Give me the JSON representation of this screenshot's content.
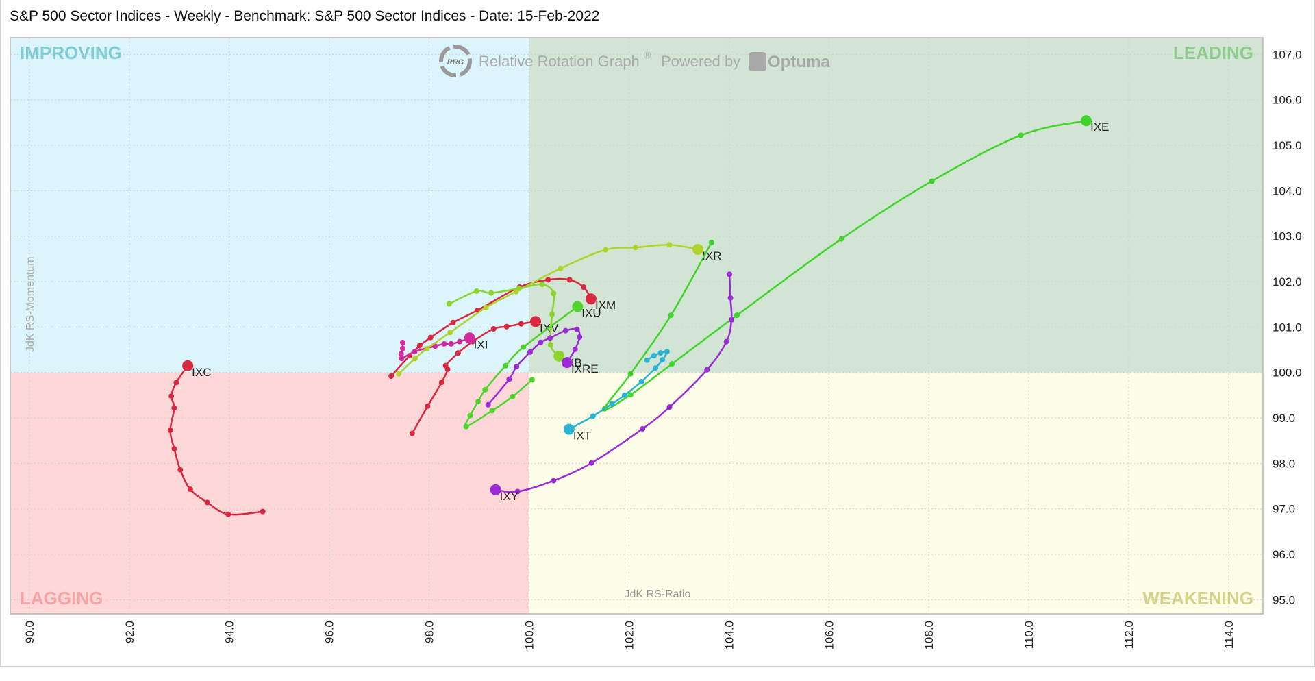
{
  "title": "S&P 500 Sector Indices - Weekly - Benchmark: S&P 500 Sector Indices - Date: 15-Feb-2022",
  "watermark": {
    "logo_text": "RRG",
    "text": "Relative Rotation Graph",
    "reg": "®",
    "powered": "Powered by",
    "brand": "Optuma"
  },
  "quadrants": {
    "improving": {
      "label": "IMPROVING",
      "bg": "#dcf4fb",
      "fg": "#7fcdd3"
    },
    "leading": {
      "label": "LEADING",
      "bg": "#d2e4d3",
      "fg": "#8ecb8e"
    },
    "lagging": {
      "label": "LAGGING",
      "bg": "#fed8d9",
      "fg": "#f5a3a5"
    },
    "weakening": {
      "label": "WEAKENING",
      "bg": "#fefee8",
      "fg": "#d3d38a"
    }
  },
  "chart_data": {
    "type": "scatter",
    "title": "S&P 500 Sector Indices - Weekly - Benchmark: S&P 500 Sector Indices - Date: 15-Feb-2022",
    "xlabel": "JdK RS-Ratio",
    "ylabel": "JdK RS-Momentum",
    "xlim": [
      89.6,
      114.7
    ],
    "ylim": [
      94.7,
      107.4
    ],
    "xticks": [
      "90.0",
      "92.0",
      "94.0",
      "96.0",
      "98.0",
      "100.0",
      "102.0",
      "104.0",
      "106.0",
      "108.0",
      "110.0",
      "112.0",
      "114.0"
    ],
    "yticks": [
      "95.0",
      "96.0",
      "97.0",
      "98.0",
      "99.0",
      "100.0",
      "101.0",
      "102.0",
      "103.0",
      "104.0",
      "105.0",
      "106.0",
      "107.0"
    ],
    "grid": true,
    "series": [
      {
        "name": "IXC",
        "color": "#d8283f",
        "points": [
          [
            94.67,
            96.94
          ],
          [
            93.98,
            96.88
          ],
          [
            93.56,
            97.14
          ],
          [
            93.22,
            97.43
          ],
          [
            93.02,
            97.86
          ],
          [
            92.9,
            98.32
          ],
          [
            92.82,
            98.73
          ],
          [
            92.9,
            99.22
          ],
          [
            92.84,
            99.48
          ],
          [
            92.94,
            99.78
          ],
          [
            93.17,
            100.15
          ]
        ]
      },
      {
        "name": "IXV",
        "color": "#d8283f",
        "points": [
          [
            97.66,
            98.66
          ],
          [
            97.97,
            99.26
          ],
          [
            98.25,
            99.78
          ],
          [
            98.37,
            100.07
          ],
          [
            98.33,
            100.15
          ],
          [
            98.58,
            100.43
          ],
          [
            98.87,
            100.68
          ],
          [
            99.29,
            100.96
          ],
          [
            99.55,
            101.01
          ],
          [
            99.84,
            101.07
          ],
          [
            100.13,
            101.12
          ]
        ]
      },
      {
        "name": "IXM",
        "color": "#d8283f",
        "points": [
          [
            97.24,
            99.92
          ],
          [
            97.61,
            100.37
          ],
          [
            97.81,
            100.59
          ],
          [
            98.03,
            100.77
          ],
          [
            98.48,
            101.1
          ],
          [
            98.97,
            101.37
          ],
          [
            99.81,
            101.88
          ],
          [
            100.38,
            102.04
          ],
          [
            100.81,
            102.04
          ],
          [
            101.09,
            101.88
          ],
          [
            101.24,
            101.62
          ]
        ]
      },
      {
        "name": "IXI",
        "color": "#d42aa0",
        "points": [
          [
            97.47,
            100.66
          ],
          [
            97.47,
            100.53
          ],
          [
            97.44,
            100.41
          ],
          [
            97.45,
            100.31
          ],
          [
            97.71,
            100.46
          ],
          [
            98.12,
            100.58
          ],
          [
            98.3,
            100.63
          ],
          [
            98.44,
            100.63
          ],
          [
            98.61,
            100.68
          ],
          [
            98.81,
            100.76
          ]
        ]
      },
      {
        "name": "IXR",
        "color": "#b0d42a",
        "points": [
          [
            97.39,
            99.97
          ],
          [
            97.72,
            100.31
          ],
          [
            97.96,
            100.53
          ],
          [
            98.42,
            100.88
          ],
          [
            99.14,
            101.43
          ],
          [
            99.74,
            101.78
          ],
          [
            100.63,
            102.29
          ],
          [
            101.53,
            102.7
          ],
          [
            102.13,
            102.75
          ],
          [
            102.81,
            102.81
          ],
          [
            103.38,
            102.71
          ]
        ]
      },
      {
        "name": "IXB",
        "color": "#8cd42a",
        "points": [
          [
            98.4,
            101.51
          ],
          [
            98.95,
            101.79
          ],
          [
            99.24,
            101.75
          ],
          [
            99.8,
            101.85
          ],
          [
            100.26,
            101.94
          ],
          [
            100.49,
            101.74
          ],
          [
            100.46,
            101.28
          ],
          [
            100.43,
            100.61
          ],
          [
            100.6,
            100.36
          ]
        ]
      },
      {
        "name": "IXU",
        "color": "#4fd42a",
        "points": [
          [
            100.06,
            99.84
          ],
          [
            99.67,
            99.47
          ],
          [
            99.26,
            99.16
          ],
          [
            98.74,
            98.81
          ],
          [
            98.82,
            99.05
          ],
          [
            98.98,
            99.36
          ],
          [
            99.12,
            99.62
          ],
          [
            99.53,
            100.15
          ],
          [
            99.89,
            100.56
          ],
          [
            100.97,
            101.45
          ]
        ]
      },
      {
        "name": "IXE",
        "color": "#3fd42a",
        "points": [
          [
            103.65,
            102.86
          ],
          [
            102.84,
            101.26
          ],
          [
            102.03,
            99.97
          ],
          [
            101.51,
            99.2
          ],
          [
            102.03,
            99.51
          ],
          [
            102.86,
            100.19
          ],
          [
            104.16,
            101.26
          ],
          [
            106.25,
            102.94
          ],
          [
            108.06,
            104.21
          ],
          [
            109.84,
            105.22
          ],
          [
            111.15,
            105.54
          ]
        ]
      },
      {
        "name": "IXRE",
        "color": "#9b2ad4",
        "points": [
          [
            99.18,
            99.29
          ],
          [
            99.6,
            99.85
          ],
          [
            99.75,
            100.13
          ],
          [
            100.02,
            100.45
          ],
          [
            100.23,
            100.66
          ],
          [
            100.42,
            100.76
          ],
          [
            100.73,
            100.92
          ],
          [
            100.96,
            100.95
          ],
          [
            101.01,
            100.78
          ],
          [
            100.92,
            100.51
          ],
          [
            100.76,
            100.22
          ]
        ]
      },
      {
        "name": "IXY",
        "color": "#9b2ad4",
        "points": [
          [
            104.01,
            102.16
          ],
          [
            104.03,
            101.64
          ],
          [
            104.05,
            101.16
          ],
          [
            103.95,
            100.68
          ],
          [
            103.56,
            100.06
          ],
          [
            102.81,
            99.24
          ],
          [
            102.27,
            98.76
          ],
          [
            101.25,
            98.01
          ],
          [
            100.49,
            97.62
          ],
          [
            99.77,
            97.38
          ],
          [
            99.33,
            97.42
          ]
        ]
      },
      {
        "name": "IXT",
        "color": "#2ab4d4",
        "points": [
          [
            102.36,
            100.27
          ],
          [
            102.5,
            100.37
          ],
          [
            102.63,
            100.43
          ],
          [
            102.76,
            100.46
          ],
          [
            102.67,
            100.28
          ],
          [
            102.53,
            100.1
          ],
          [
            102.25,
            99.8
          ],
          [
            101.91,
            99.5
          ],
          [
            101.66,
            99.31
          ],
          [
            101.28,
            99.04
          ],
          [
            100.8,
            98.75
          ]
        ]
      }
    ]
  }
}
